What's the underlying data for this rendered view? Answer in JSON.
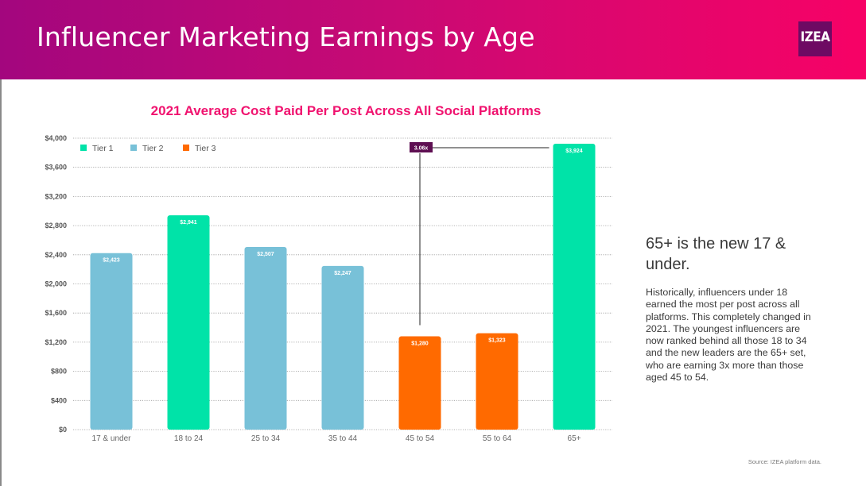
{
  "header": {
    "title": "Influencer Marketing Earnings by Age",
    "logo_text": "IZEA"
  },
  "colors": {
    "tier1": "#00e3a8",
    "tier2": "#78c1d8",
    "tier3": "#ff6a00",
    "callout": "#5e0f52",
    "title": "#f0136f"
  },
  "chart_data": {
    "type": "bar",
    "title": "2021 Average Cost Paid Per Post Across All Social Platforms",
    "categories": [
      "17 & under",
      "18 to 24",
      "25 to 34",
      "35 to 44",
      "45 to 54",
      "55 to 64",
      "65+"
    ],
    "values": [
      2423,
      2941,
      2507,
      2247,
      1280,
      1323,
      3924
    ],
    "data_labels": [
      "$2,423",
      "$2,941",
      "$2,507",
      "$2,247",
      "$1,280",
      "$1,323",
      "$3,924"
    ],
    "tiers": [
      "Tier 2",
      "Tier 1",
      "Tier 2",
      "Tier 2",
      "Tier 3",
      "Tier 3",
      "Tier 1"
    ],
    "legend": [
      "Tier 1",
      "Tier 2",
      "Tier 3"
    ],
    "legend_position": "top-left",
    "ylim": [
      0,
      4000
    ],
    "y_ticks": [
      0,
      400,
      800,
      1200,
      1600,
      2000,
      2400,
      2800,
      3200,
      3600,
      4000
    ],
    "y_tick_labels": [
      "$0",
      "$400",
      "$800",
      "$1,200",
      "$1,600",
      "$2,000",
      "$2,400",
      "$2,800",
      "$3,200",
      "$3,600",
      "$4,000"
    ],
    "grid": true,
    "annotation": {
      "text": "3.06x",
      "from_category": "45 to 54",
      "to_category": "65+"
    },
    "xlabel": "",
    "ylabel": ""
  },
  "sidebar": {
    "headline": "65+ is the new 17 & under.",
    "body": "Historically, influencers under 18 earned the most per post across all platforms. This completely changed in 2021. The youngest influencers are now ranked behind all those 18 to 34 and the new leaders are the 65+ set, who are earning 3x more than those aged 45 to 54."
  },
  "source": "Source: IZEA platform data."
}
